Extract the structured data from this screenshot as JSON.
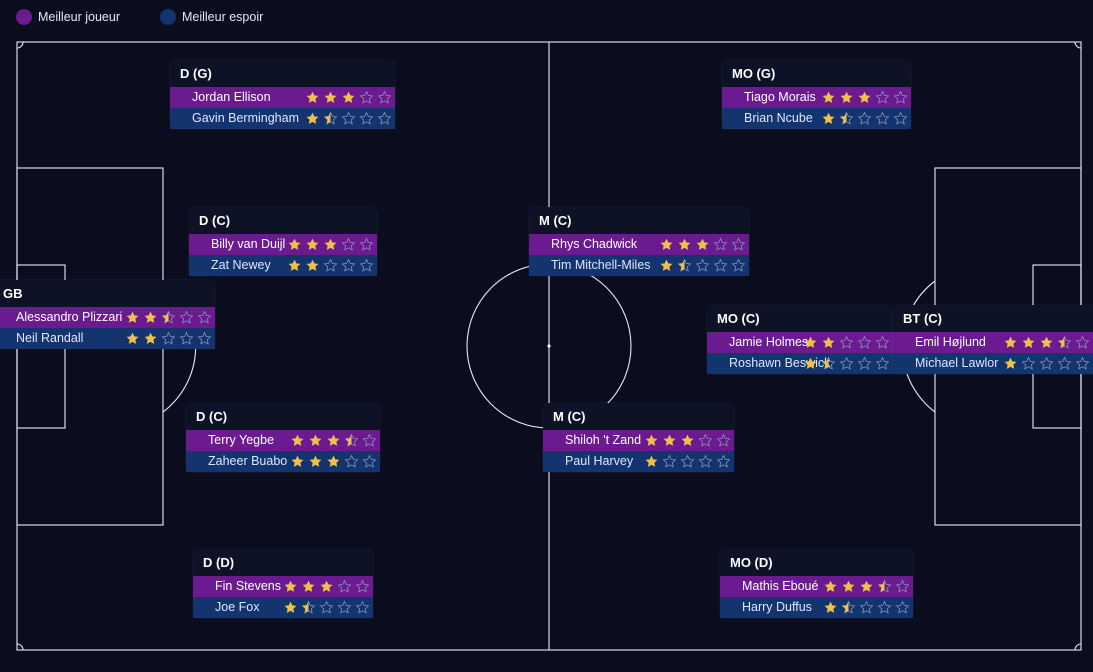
{
  "legend": {
    "best_label": "Meilleur joueur",
    "prospect_label": "Meilleur espoir",
    "best_color": "#6b1a8f",
    "prospect_color": "#13346e"
  },
  "colors": {
    "star_filled": "#f0c04a",
    "star_empty_stroke": "#8a93b8"
  },
  "positions": [
    {
      "id": "dg",
      "title": "D (G)",
      "best": {
        "name": "Jordan Ellison",
        "rating": 3
      },
      "prospect": {
        "name": "Gavin Bermingham",
        "rating": 1.5
      }
    },
    {
      "id": "dc1",
      "title": "D (C)",
      "best": {
        "name": "Billy van Duijl",
        "rating": 3
      },
      "prospect": {
        "name": "Zat Newey",
        "rating": 2
      }
    },
    {
      "id": "gb",
      "title": "GB",
      "best": {
        "name": "Alessandro Plizzari",
        "rating": 2.5
      },
      "prospect": {
        "name": "Neil Randall",
        "rating": 2
      }
    },
    {
      "id": "dc2",
      "title": "D (C)",
      "best": {
        "name": "Terry Yegbe",
        "rating": 3.5
      },
      "prospect": {
        "name": "Zaheer Buabo",
        "rating": 3
      }
    },
    {
      "id": "dd",
      "title": "D (D)",
      "best": {
        "name": "Fin Stevens",
        "rating": 3
      },
      "prospect": {
        "name": "Joe Fox",
        "rating": 1.5
      }
    },
    {
      "id": "mc1",
      "title": "M (C)",
      "best": {
        "name": "Rhys Chadwick",
        "rating": 3
      },
      "prospect": {
        "name": "Tim Mitchell-Miles",
        "rating": 1.5
      }
    },
    {
      "id": "mc2",
      "title": "M (C)",
      "best": {
        "name": "Shiloh 't Zand",
        "rating": 3
      },
      "prospect": {
        "name": "Paul Harvey",
        "rating": 1
      }
    },
    {
      "id": "mog",
      "title": "MO (G)",
      "best": {
        "name": "Tiago Morais",
        "rating": 3
      },
      "prospect": {
        "name": "Brian Ncube",
        "rating": 1.5
      }
    },
    {
      "id": "moc",
      "title": "MO (C)",
      "best": {
        "name": "Jamie Holmes",
        "rating": 2
      },
      "prospect": {
        "name": "Roshawn Beswick",
        "rating": 1.5
      }
    },
    {
      "id": "btc",
      "title": "BT (C)",
      "best": {
        "name": "Emil Højlund",
        "rating": 3.5
      },
      "prospect": {
        "name": "Michael Lawlor",
        "rating": 1
      }
    },
    {
      "id": "mod",
      "title": "MO (D)",
      "best": {
        "name": "Mathis Eboué",
        "rating": 3.5
      },
      "prospect": {
        "name": "Harry Duffus",
        "rating": 1.5
      }
    }
  ]
}
